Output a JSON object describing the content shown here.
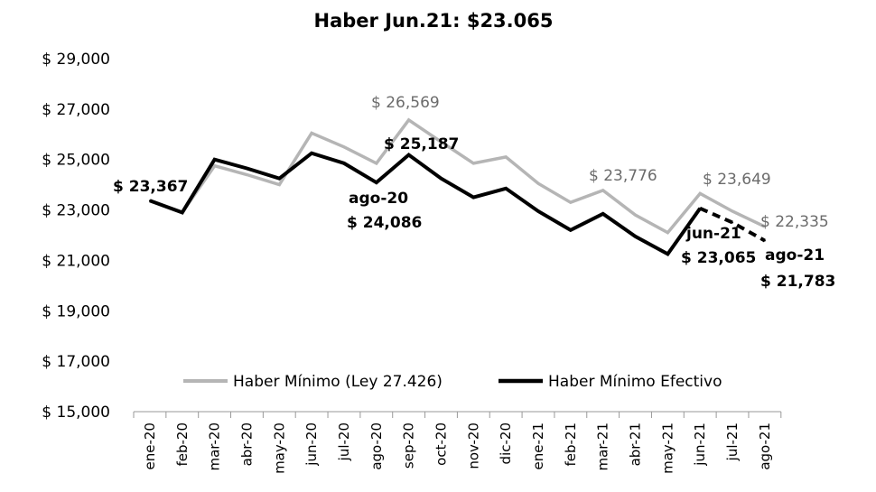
{
  "chart_data": {
    "type": "line",
    "title": "Haber Jun.21: $23.065",
    "xlabel": "",
    "ylabel": "",
    "ylim": [
      15000,
      29000
    ],
    "yticks": [
      15000,
      17000,
      19000,
      21000,
      23000,
      25000,
      27000,
      29000
    ],
    "ytick_labels": [
      "$ 15,000",
      "$ 17,000",
      "$ 19,000",
      "$ 21,000",
      "$ 23,000",
      "$ 25,000",
      "$ 27,000",
      "$ 29,000"
    ],
    "categories": [
      "ene-20",
      "feb-20",
      "mar-20",
      "abr-20",
      "may-20",
      "jun-20",
      "jul-20",
      "ago-20",
      "sep-20",
      "oct-20",
      "nov-20",
      "dic-20",
      "ene-21",
      "feb-21",
      "mar-21",
      "abr-21",
      "may-21",
      "jun-21",
      "jul-21",
      "ago-21"
    ],
    "grid": false,
    "legend_position": "bottom-center",
    "series": [
      {
        "name": "Haber Mínimo (Ley 27.426)",
        "color": "#b5b5b5",
        "style": "solid",
        "values": [
          23367,
          22900,
          24750,
          24400,
          24000,
          26050,
          25500,
          24850,
          26569,
          25700,
          24850,
          25100,
          24050,
          23300,
          23776,
          22800,
          22100,
          23649,
          22950,
          22335
        ]
      },
      {
        "name": "Haber Mínimo Efectivo",
        "color": "#000000",
        "style": "solid",
        "values": [
          23367,
          22900,
          25000,
          24650,
          24250,
          25250,
          24850,
          24086,
          25187,
          24250,
          23500,
          23850,
          22950,
          22200,
          22850,
          21950,
          21250,
          23065,
          null,
          null
        ]
      },
      {
        "name": "",
        "color": "#000000",
        "style": "dashed",
        "values": [
          null,
          null,
          null,
          null,
          null,
          null,
          null,
          null,
          null,
          null,
          null,
          null,
          null,
          null,
          null,
          null,
          null,
          23065,
          22500,
          21783
        ]
      }
    ],
    "annotations": [
      {
        "text": "$ 23,367",
        "target": "ene-20",
        "color": "black"
      },
      {
        "text": "$ 26,569",
        "target": "sep-20",
        "color": "gray"
      },
      {
        "text": "$ 25,187",
        "target": "sep-20",
        "color": "black"
      },
      {
        "text": "ago-20",
        "target": "ago-20",
        "color": "black"
      },
      {
        "text": "$ 24,086",
        "target": "ago-20",
        "color": "black"
      },
      {
        "text": "$ 23,776",
        "target": "mar-21",
        "color": "gray"
      },
      {
        "text": "$ 23,649",
        "target": "jun-21",
        "color": "gray"
      },
      {
        "text": "$ 22,335",
        "target": "ago-21",
        "color": "gray"
      },
      {
        "text": "jun-21",
        "target": "jun-21",
        "color": "black"
      },
      {
        "text": "$ 23,065",
        "target": "jun-21",
        "color": "black"
      },
      {
        "text": "ago-21",
        "target": "ago-21",
        "color": "black"
      },
      {
        "text": "$ 21,783",
        "target": "ago-21",
        "color": "black"
      }
    ]
  }
}
